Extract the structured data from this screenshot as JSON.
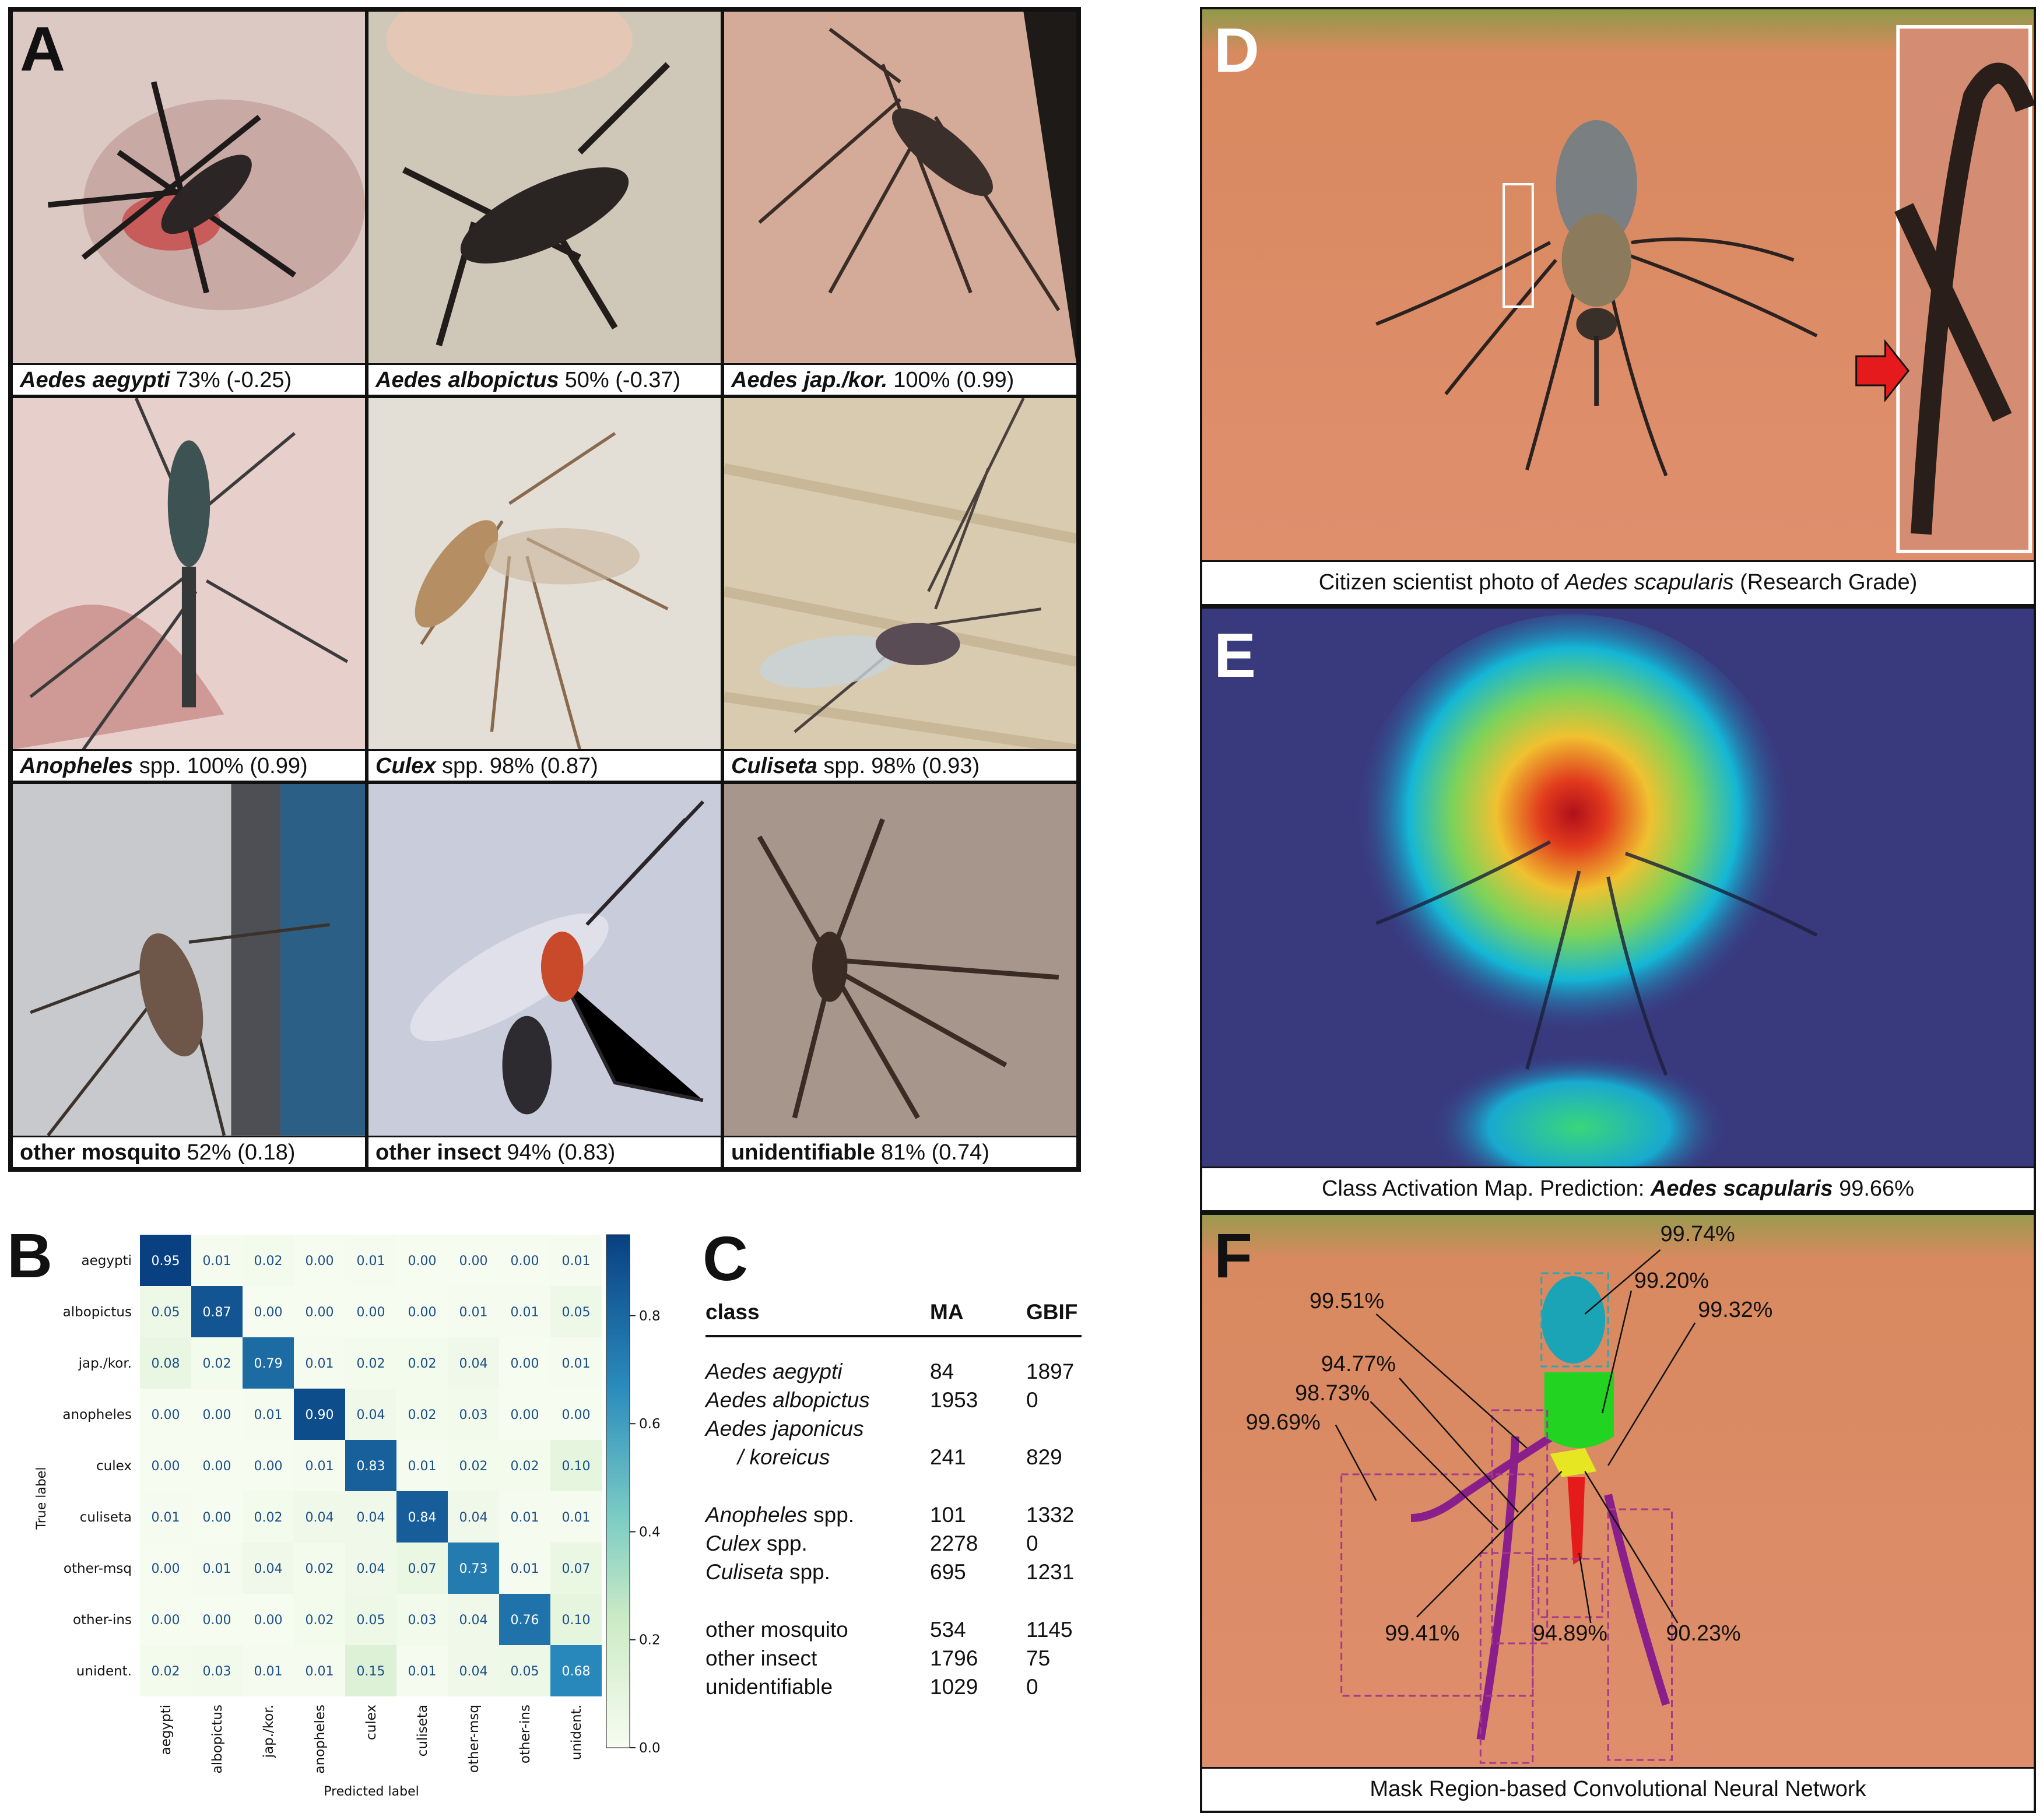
{
  "panelA": {
    "letter": "A",
    "cells": [
      {
        "name": "Aedes aegypti",
        "italic": true,
        "stat": "73% (-0.25)"
      },
      {
        "name": "Aedes albopictus",
        "italic": true,
        "stat": "50% (-0.37)"
      },
      {
        "name": "Aedes jap./kor.",
        "italic": true,
        "stat": "100% (0.99)"
      },
      {
        "name": "Anopheles",
        "suffix": " spp.",
        "italic": true,
        "stat": "100% (0.99)"
      },
      {
        "name": "Culex",
        "suffix": " spp.",
        "italic": true,
        "stat": "98% (0.87)"
      },
      {
        "name": "Culiseta",
        "suffix": " spp.",
        "italic": true,
        "stat": "98% (0.93)"
      },
      {
        "name": "other mosquito",
        "italic": false,
        "stat": "52% (0.18)"
      },
      {
        "name": "other insect",
        "italic": false,
        "stat": "94% (0.83)"
      },
      {
        "name": "unidentifiable",
        "italic": false,
        "stat": "81% (0.74)"
      }
    ]
  },
  "panelB": {
    "letter": "B",
    "chart_data": {
      "type": "heatmap",
      "title": "",
      "xlabel": "Predicted label",
      "ylabel": "True label",
      "x_categories": [
        "aegypti",
        "albopictus",
        "jap./kor.",
        "anopheles",
        "culex",
        "culiseta",
        "other-msq",
        "other-ins",
        "unident."
      ],
      "y_categories": [
        "aegypti",
        "albopictus",
        "jap./kor.",
        "anopheles",
        "culex",
        "culiseta",
        "other-msq",
        "other-ins",
        "unident."
      ],
      "values": [
        [
          0.95,
          0.01,
          0.02,
          0.0,
          0.01,
          0.0,
          0.0,
          0.0,
          0.01
        ],
        [
          0.05,
          0.87,
          0.0,
          0.0,
          0.0,
          0.0,
          0.01,
          0.01,
          0.05
        ],
        [
          0.08,
          0.02,
          0.79,
          0.01,
          0.02,
          0.02,
          0.04,
          0.0,
          0.01
        ],
        [
          0.0,
          0.0,
          0.01,
          0.9,
          0.04,
          0.02,
          0.03,
          0.0,
          0.0
        ],
        [
          0.0,
          0.0,
          0.0,
          0.01,
          0.83,
          0.01,
          0.02,
          0.02,
          0.1
        ],
        [
          0.01,
          0.0,
          0.02,
          0.04,
          0.04,
          0.84,
          0.04,
          0.01,
          0.01
        ],
        [
          0.0,
          0.01,
          0.04,
          0.02,
          0.04,
          0.07,
          0.73,
          0.01,
          0.07
        ],
        [
          0.0,
          0.0,
          0.0,
          0.02,
          0.05,
          0.03,
          0.04,
          0.76,
          0.1
        ],
        [
          0.02,
          0.03,
          0.01,
          0.01,
          0.15,
          0.01,
          0.04,
          0.05,
          0.68
        ]
      ],
      "colorbar_ticks": [
        "0.0",
        "0.2",
        "0.4",
        "0.6",
        "0.8"
      ],
      "colorbar_range": [
        0,
        0.95
      ],
      "colormap": "GnBu"
    }
  },
  "panelC": {
    "letter": "C",
    "headers": [
      "class",
      "MA",
      "GBIF"
    ],
    "rows": [
      {
        "cls": "Aedes aegypti",
        "ma": "84",
        "gbif": "1897"
      },
      {
        "cls": "Aedes albopictus",
        "ma": "1953",
        "gbif": "0"
      },
      {
        "cls": "Aedes japonicus",
        "ma": "",
        "gbif": ""
      },
      {
        "cls": "/ koreicus",
        "ma": "241",
        "gbif": "829"
      },
      {
        "cls": "Anopheles",
        "suffix": " spp.",
        "ma": "101",
        "gbif": "1332"
      },
      {
        "cls": "Culex",
        "suffix": " spp.",
        "ma": "2278",
        "gbif": "0"
      },
      {
        "cls": "Culiseta",
        "suffix": " spp.",
        "ma": "695",
        "gbif": "1231"
      },
      {
        "cls": "other mosquito",
        "ma": "534",
        "gbif": "1145"
      },
      {
        "cls": "other insect",
        "ma": "1796",
        "gbif": "75"
      },
      {
        "cls": "unidentifiable",
        "ma": "1029",
        "gbif": "0"
      }
    ]
  },
  "panelD": {
    "letter": "D",
    "caption_pre": "Citizen scientist photo of ",
    "caption_species": "Aedes scapularis",
    "caption_post": "  (Research Grade)"
  },
  "panelE": {
    "letter": "E",
    "caption_pre": "Class Activation Map. Prediction: ",
    "caption_species": "Aedes scapularis",
    "caption_post": "  99.66%"
  },
  "panelF": {
    "letter": "F",
    "caption": "Mask Region-based Convolutional Neural Network",
    "labels": {
      "l1": "99.74%",
      "l2": "99.51%",
      "l3": "99.20%",
      "l4": "94.77%",
      "l5": "99.32%",
      "l6": "98.73%",
      "l7": "99.69%",
      "l8": "99.41%",
      "l9": "94.89%",
      "l10": "90.23%"
    }
  },
  "colors": {
    "skin": "#d98a68",
    "cam_bg": "#39397e",
    "head_mask": "#1aa4b5",
    "thorax_mask": "#22d322",
    "abdomen_mask": "#e6e622",
    "proboscis_mask": "#e51a1a",
    "leg_mask": "#8a1f8c"
  }
}
